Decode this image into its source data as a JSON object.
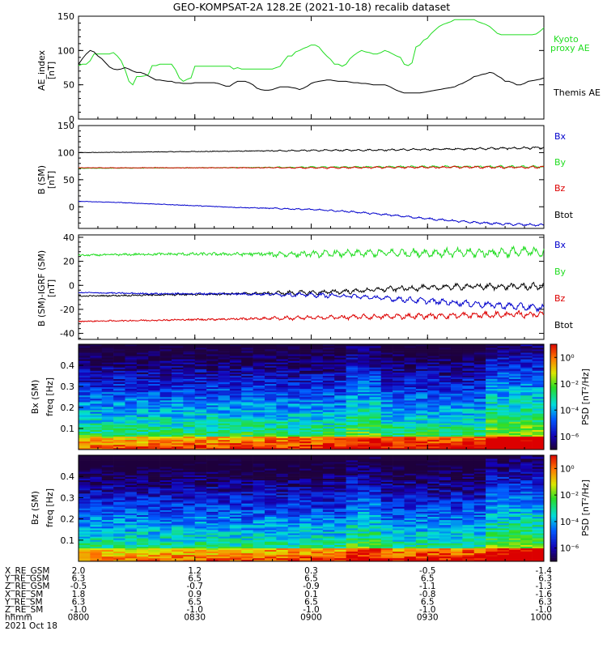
{
  "title": "GEO-KOMPSAT-2A 128.2E (2021-10-18) recalib dataset",
  "colors": {
    "black": "#000000",
    "green": "#22dd22",
    "blue": "#0000cc",
    "red": "#dd0000"
  },
  "chart_data": [
    {
      "type": "line",
      "name": "ae-panel",
      "ylabel": "AE_index [nT]",
      "ylabel_lines": [
        "AE_index",
        "[nT]"
      ],
      "ylim": [
        0,
        150
      ],
      "yticks": [
        0,
        50,
        100,
        150
      ],
      "legend": [
        {
          "label": "Kyoto\nproxy AE",
          "lines": [
            "Kyoto",
            "proxy AE"
          ],
          "color": "#22dd22"
        },
        {
          "label": "Themis AE",
          "lines": [
            "Themis AE"
          ],
          "color": "#000000"
        }
      ],
      "series": [
        {
          "name": "Kyoto proxy AE",
          "color": "#22dd22",
          "x": [
            0,
            1,
            2,
            3,
            4,
            5,
            6,
            7,
            8,
            9,
            10,
            11,
            12,
            13,
            14,
            15,
            16,
            17,
            18,
            19,
            20,
            21,
            22,
            23,
            24,
            25,
            26,
            27,
            28,
            29,
            30,
            31,
            32,
            33,
            34,
            35,
            36,
            37,
            38,
            39,
            40,
            41,
            42,
            43,
            44,
            45,
            46,
            47,
            48,
            49,
            50,
            51,
            52,
            53,
            54,
            55,
            56,
            57,
            58,
            59,
            60,
            61,
            62,
            63,
            64,
            65,
            66,
            67,
            68,
            69,
            70,
            71,
            72,
            73,
            74,
            75,
            76,
            77,
            78,
            79,
            80,
            81,
            82,
            83,
            84,
            85,
            86,
            87,
            88,
            89,
            90,
            91,
            92,
            93,
            94,
            95,
            96,
            97,
            98,
            99,
            100,
            101,
            102,
            103,
            104,
            105,
            106,
            107,
            108,
            109,
            110,
            111,
            112,
            113,
            114,
            115,
            116,
            117,
            118,
            119,
            120
          ],
          "values": [
            78,
            80,
            80,
            85,
            95,
            95,
            95,
            95,
            95,
            97,
            92,
            85,
            72,
            55,
            50,
            62,
            62,
            63,
            65,
            78,
            78,
            80,
            80,
            80,
            80,
            72,
            60,
            55,
            58,
            60,
            77,
            77,
            77,
            77,
            77,
            77,
            77,
            77,
            77,
            77,
            73,
            75,
            73,
            73,
            73,
            73,
            73,
            73,
            73,
            73,
            73,
            75,
            77,
            85,
            92,
            92,
            98,
            100,
            103,
            105,
            108,
            108,
            105,
            98,
            92,
            87,
            80,
            80,
            77,
            80,
            88,
            93,
            97,
            100,
            98,
            97,
            95,
            95,
            97,
            100,
            98,
            95,
            92,
            90,
            80,
            78,
            82,
            105,
            108,
            115,
            118,
            125,
            130,
            135,
            138,
            140,
            142,
            145,
            145,
            145,
            145,
            145,
            145,
            142,
            140,
            138,
            135,
            130,
            125,
            123,
            123,
            123,
            123,
            123,
            123,
            123,
            123,
            123,
            124,
            128,
            133
          ]
        },
        {
          "name": "Themis AE",
          "color": "#000000",
          "x": [
            0,
            1,
            2,
            3,
            4,
            5,
            6,
            7,
            8,
            9,
            10,
            11,
            12,
            13,
            14,
            15,
            16,
            17,
            18,
            19,
            20,
            21,
            22,
            23,
            24,
            25,
            26,
            27,
            28,
            29,
            30,
            31,
            32,
            33,
            34,
            35,
            36,
            37,
            38,
            39,
            40,
            41,
            42,
            43,
            44,
            45,
            46,
            47,
            48,
            49,
            50,
            51,
            52,
            53,
            54,
            55,
            56,
            57,
            58,
            59,
            60,
            61,
            62,
            63,
            64,
            65,
            66,
            67,
            68,
            69,
            70,
            71,
            72,
            73,
            74,
            75,
            76,
            77,
            78,
            79,
            80,
            81,
            82,
            83,
            84,
            85,
            86,
            87,
            88,
            89,
            90,
            91,
            92,
            93,
            94,
            95,
            96,
            97,
            98,
            99,
            100,
            101,
            102,
            103,
            104,
            105,
            106,
            107,
            108,
            109,
            110,
            111,
            112,
            113,
            114,
            115,
            116,
            117,
            118,
            119,
            120
          ],
          "values": [
            80,
            88,
            95,
            100,
            98,
            92,
            88,
            82,
            76,
            73,
            72,
            73,
            75,
            73,
            70,
            68,
            68,
            66,
            63,
            60,
            57,
            57,
            56,
            55,
            55,
            53,
            53,
            52,
            52,
            52,
            53,
            53,
            53,
            53,
            53,
            53,
            52,
            50,
            48,
            48,
            52,
            55,
            55,
            55,
            53,
            50,
            45,
            43,
            42,
            42,
            43,
            45,
            47,
            47,
            47,
            46,
            45,
            43,
            45,
            48,
            52,
            54,
            55,
            56,
            57,
            57,
            56,
            55,
            55,
            55,
            54,
            53,
            53,
            52,
            52,
            51,
            50,
            50,
            50,
            50,
            48,
            45,
            42,
            40,
            38,
            38,
            38,
            38,
            38,
            39,
            40,
            41,
            42,
            43,
            44,
            45,
            46,
            47,
            50,
            52,
            55,
            58,
            62,
            63,
            65,
            66,
            68,
            67,
            63,
            60,
            55,
            55,
            53,
            50,
            50,
            52,
            55,
            56,
            57,
            58,
            60
          ]
        }
      ]
    },
    {
      "type": "line",
      "name": "b-sm-panel",
      "ylabel": "B (SM) [nT]",
      "ylabel_lines": [
        "B (SM)",
        "[nT]"
      ],
      "ylim": [
        -40,
        150
      ],
      "yticks": [
        0,
        50,
        100,
        150
      ],
      "legend": [
        {
          "label": "Bx",
          "lines": [
            "Bx"
          ],
          "color": "#0000cc"
        },
        {
          "label": "By",
          "lines": [
            "By"
          ],
          "color": "#22dd22"
        },
        {
          "label": "Bz",
          "lines": [
            "Bz"
          ],
          "color": "#dd0000"
        },
        {
          "label": "Btot",
          "lines": [
            "Btot"
          ],
          "color": "#000000"
        }
      ],
      "series": [
        {
          "name": "Btot",
          "color": "#000000",
          "x": [
            0,
            30,
            60,
            80,
            90,
            100,
            110,
            120
          ],
          "values": [
            100,
            102,
            104,
            105,
            106,
            107,
            108,
            109
          ]
        },
        {
          "name": "By",
          "color": "#22dd22",
          "x": [
            0,
            30,
            60,
            90,
            120
          ],
          "values": [
            71,
            72,
            73,
            74,
            74
          ]
        },
        {
          "name": "Bz",
          "color": "#dd0000",
          "x": [
            0,
            30,
            60,
            90,
            120
          ],
          "values": [
            72,
            72,
            72,
            73,
            73
          ]
        },
        {
          "name": "Bx",
          "color": "#0000cc",
          "x": [
            0,
            10,
            20,
            30,
            40,
            50,
            60,
            70,
            80,
            90,
            100,
            110,
            120
          ],
          "values": [
            10,
            8,
            5,
            2,
            -1,
            -3,
            -5,
            -9,
            -15,
            -22,
            -28,
            -32,
            -34
          ]
        }
      ]
    },
    {
      "type": "line",
      "name": "b-minus-igrf-panel",
      "ylabel": "B (SM)-IGRF (SM) [nT]",
      "ylabel_lines": [
        "B (SM)-IGRF (SM)",
        "[nT]"
      ],
      "ylim": [
        -45,
        42
      ],
      "yticks": [
        -40,
        -20,
        0,
        20,
        40
      ],
      "legend": [
        {
          "label": "Bx",
          "lines": [
            "Bx"
          ],
          "color": "#0000cc"
        },
        {
          "label": "By",
          "lines": [
            "By"
          ],
          "color": "#22dd22"
        },
        {
          "label": "Bz",
          "lines": [
            "Bz"
          ],
          "color": "#dd0000"
        },
        {
          "label": "Btot",
          "lines": [
            "Btot"
          ],
          "color": "#000000"
        }
      ],
      "series": [
        {
          "name": "By",
          "color": "#22dd22",
          "x": [
            0,
            20,
            40,
            60,
            80,
            100,
            120
          ],
          "values": [
            25,
            26,
            26,
            26,
            27,
            27,
            28
          ]
        },
        {
          "name": "Btot",
          "color": "#000000",
          "x": [
            0,
            20,
            40,
            60,
            70,
            80,
            90,
            100,
            110,
            120
          ],
          "values": [
            -9,
            -8,
            -7,
            -6,
            -5,
            -3,
            -2,
            -1,
            -1,
            -1
          ]
        },
        {
          "name": "Bx",
          "color": "#0000cc",
          "x": [
            0,
            20,
            40,
            60,
            70,
            80,
            90,
            100,
            110,
            120
          ],
          "values": [
            -6,
            -7,
            -7,
            -8,
            -9,
            -11,
            -13,
            -15,
            -17,
            -19
          ]
        },
        {
          "name": "Bz",
          "color": "#dd0000",
          "x": [
            0,
            20,
            40,
            60,
            80,
            100,
            120
          ],
          "values": [
            -30,
            -29,
            -28,
            -27,
            -26,
            -25,
            -24
          ]
        }
      ]
    },
    {
      "type": "heatmap",
      "name": "bx-spectrogram",
      "ylabel": "Bx (SM) freq [Hz]",
      "ylabel_lines": [
        "Bx (SM)",
        "freq [Hz]"
      ],
      "ylim": [
        0,
        0.5
      ],
      "yticks": [
        0.1,
        0.2,
        0.3,
        0.4
      ],
      "colorbar": {
        "label": "PSD [nT²/Hz]",
        "ticks": [
          "10⁰",
          "10⁻²",
          "10⁻⁴",
          "10⁻⁶"
        ],
        "range": [
          -7,
          1
        ]
      }
    },
    {
      "type": "heatmap",
      "name": "bz-spectrogram",
      "ylabel": "Bz (SM) freq [Hz]",
      "ylabel_lines": [
        "Bz (SM)",
        "freq [Hz]"
      ],
      "ylim": [
        0,
        0.5
      ],
      "yticks": [
        0.1,
        0.2,
        0.3,
        0.4
      ],
      "colorbar": {
        "label": "PSD [nT²/Hz]",
        "ticks": [
          "10⁰",
          "10⁻²",
          "10⁻⁴",
          "10⁻⁶"
        ],
        "range": [
          -7,
          1
        ]
      }
    }
  ],
  "ephemeris": {
    "rows": [
      {
        "label": "X_RE_GSM",
        "values": [
          "2.0",
          "1.2",
          "0.3",
          "-0.5",
          "-1.4"
        ]
      },
      {
        "label": "Y_RE_GSM",
        "values": [
          "6.3",
          "6.5",
          "6.5",
          "6.5",
          "6.3"
        ]
      },
      {
        "label": "Z_RE_GSM",
        "values": [
          "-0.5",
          "-0.7",
          "-0.9",
          "-1.1",
          "-1.3"
        ]
      },
      {
        "label": "X_RE_SM",
        "values": [
          "1.8",
          "0.9",
          "0.1",
          "-0.8",
          "-1.6"
        ]
      },
      {
        "label": "Y_RE_SM",
        "values": [
          "6.3",
          "6.5",
          "6.5",
          "6.5",
          "6.3"
        ]
      },
      {
        "label": "Z_RE_SM",
        "values": [
          "-1.0",
          "-1.0",
          "-1.0",
          "-1.0",
          "-1.0"
        ]
      },
      {
        "label": "hhmm",
        "values": [
          "0800",
          "0830",
          "0900",
          "0930",
          "1000"
        ]
      }
    ],
    "date": "2021 Oct 18"
  }
}
